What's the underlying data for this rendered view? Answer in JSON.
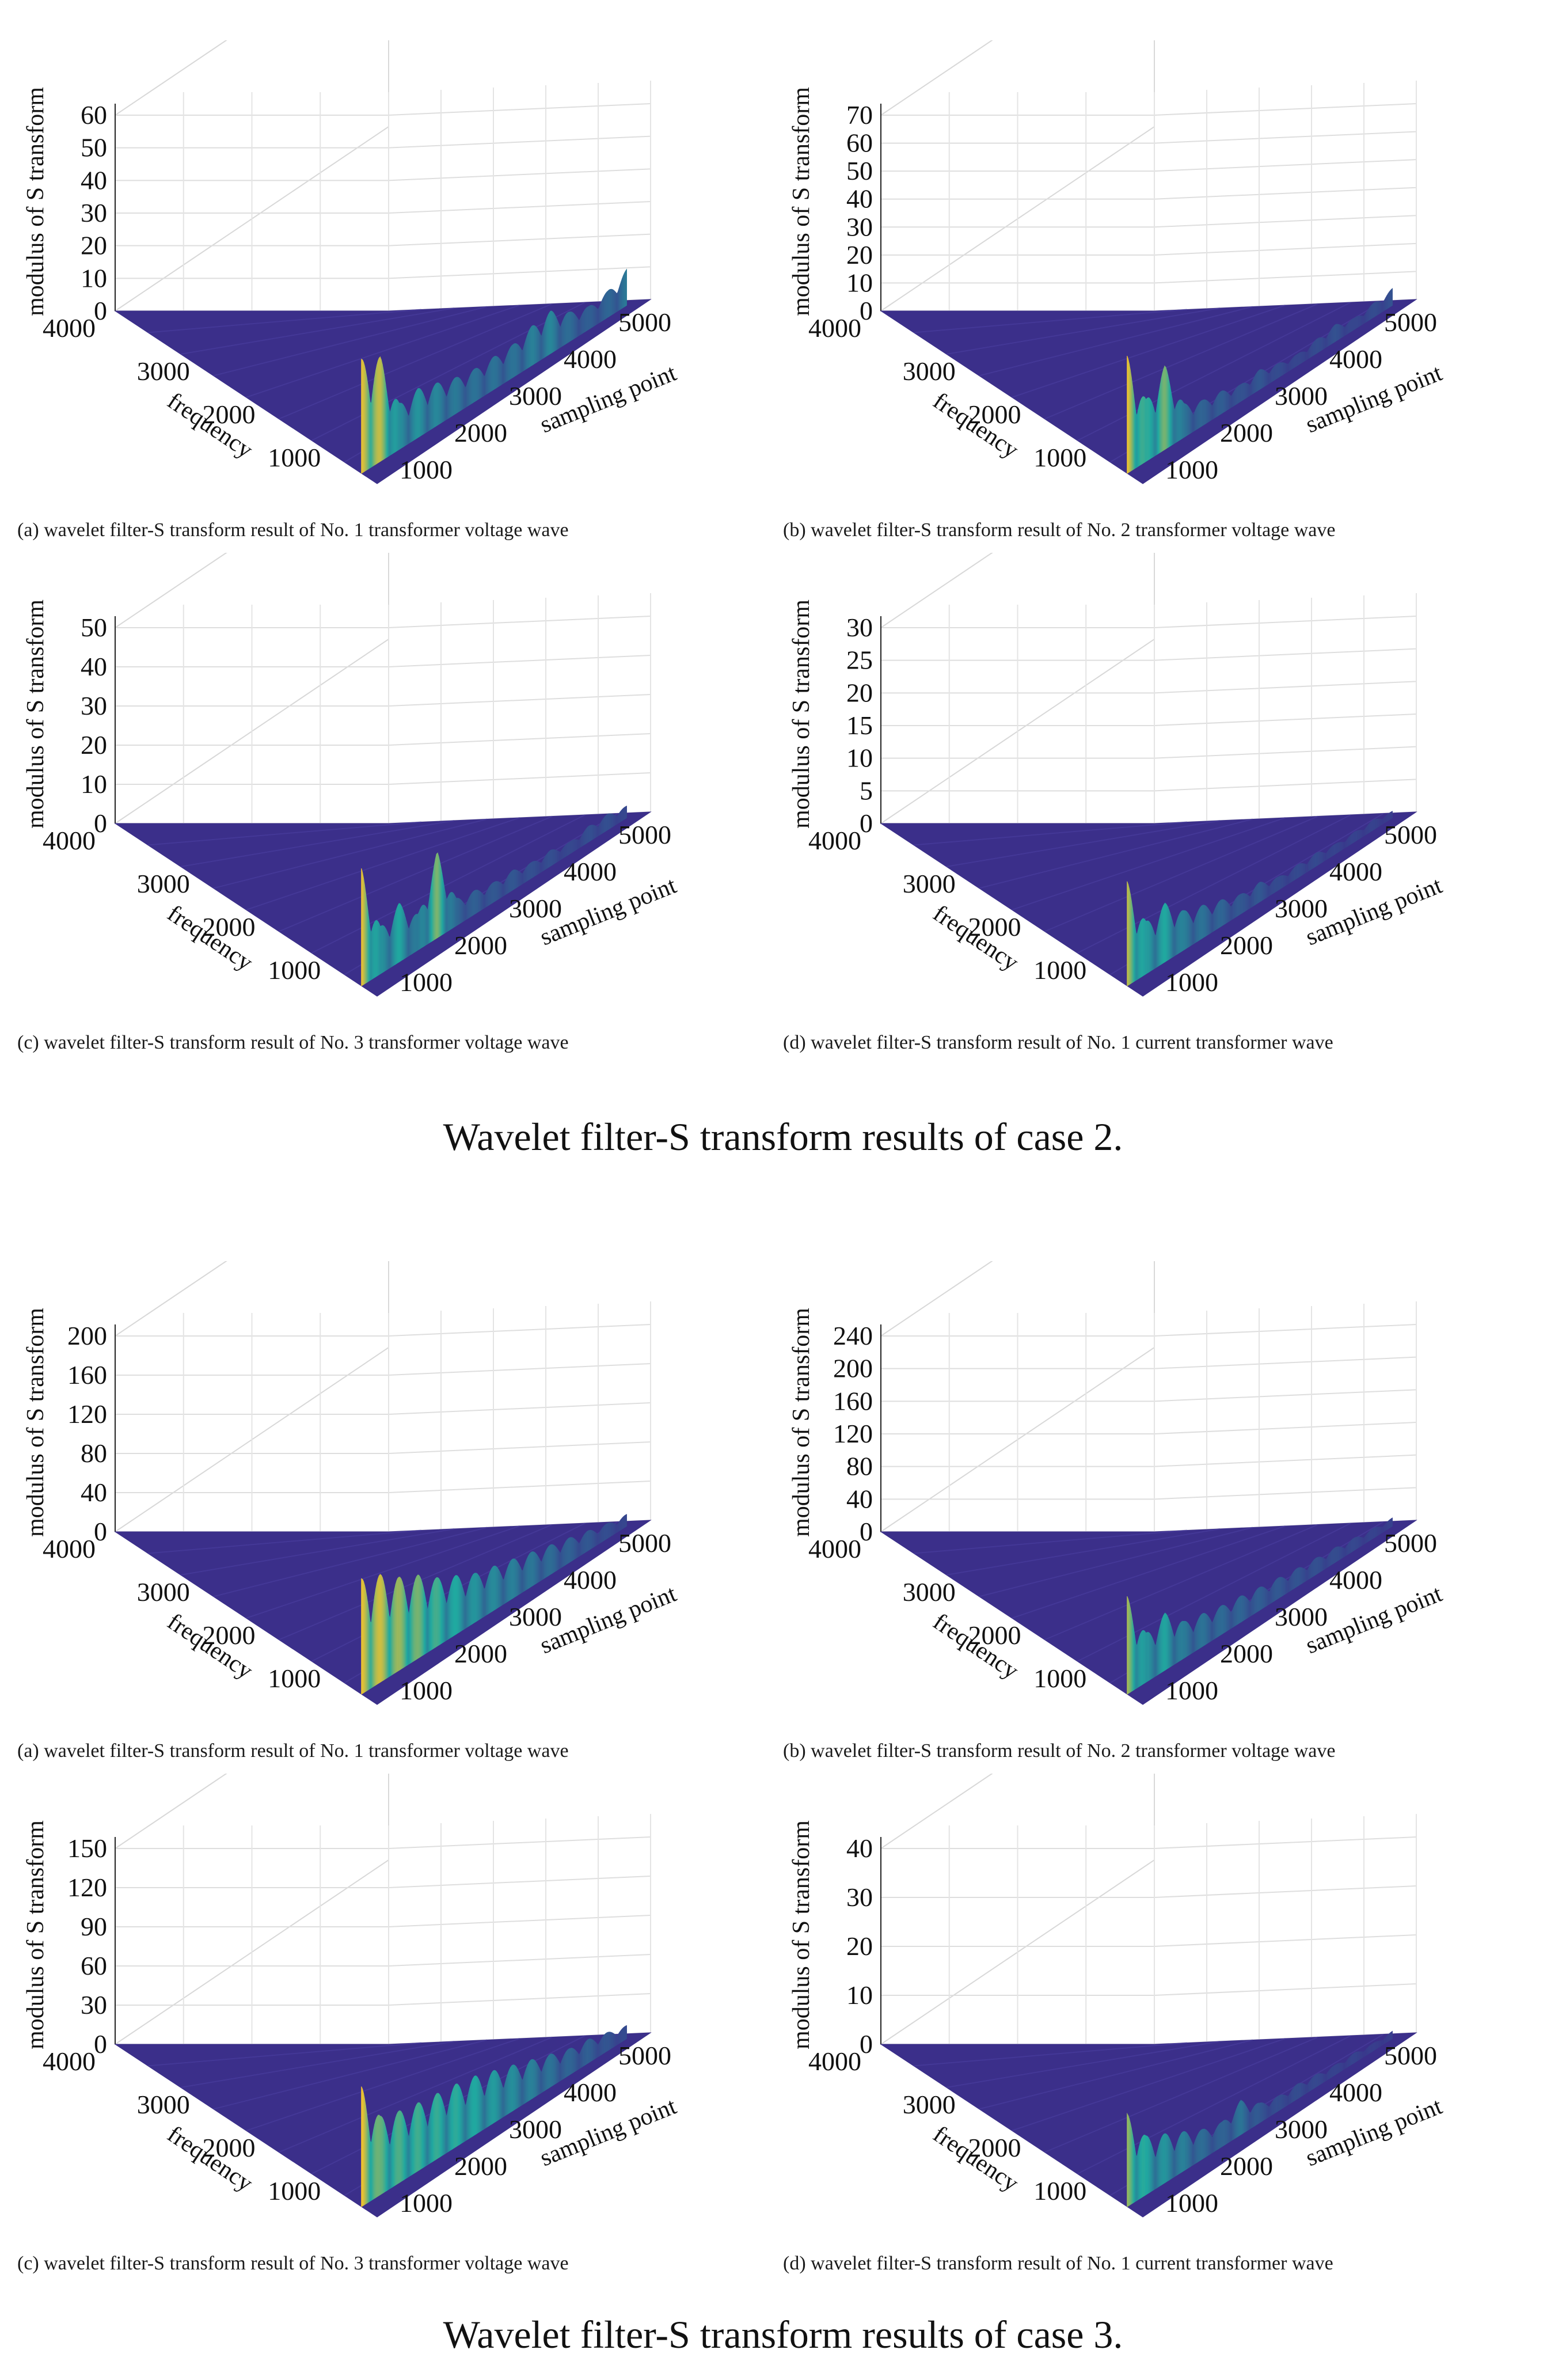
{
  "figure_captions": {
    "case2": "Wavelet filter-S transform results of case 2.",
    "case3": "Wavelet filter-S transform results of case 3."
  },
  "chart_data": [
    {
      "type": "surface3d",
      "caption": "(a) wavelet filter-S transform result of No. 1 transformer voltage wave",
      "zlabel": "modulus of S transform",
      "ylabel": "frequency",
      "xlabel": "sampling point",
      "zticks": [
        "0",
        "10",
        "20",
        "30",
        "40",
        "50",
        "60"
      ],
      "zlim": [
        0,
        60
      ],
      "yticks": [
        "4000",
        "3000",
        "2000",
        "1000"
      ],
      "xticks": [
        "1000",
        "2000",
        "3000",
        "4000",
        "5000"
      ],
      "peaks": [
        35,
        32,
        14,
        15,
        13,
        11,
        10,
        10,
        10,
        12,
        13,
        9,
        7,
        8,
        11
      ],
      "colors": {
        "low": "#3b2f8a",
        "mid": "#21a9a0",
        "high": "#f2c22e"
      }
    },
    {
      "type": "surface3d",
      "caption": "(b) wavelet filter-S transform result of No. 2 transformer voltage wave",
      "zlabel": "modulus of S transform",
      "ylabel": "frequency",
      "xlabel": "sampling point",
      "zticks": [
        "0",
        "10",
        "20",
        "30",
        "40",
        "50",
        "60",
        "70"
      ],
      "zlim": [
        0,
        70
      ],
      "yticks": [
        "4000",
        "3000",
        "2000",
        "1000"
      ],
      "xticks": [
        "1000",
        "2000",
        "3000",
        "4000",
        "5000"
      ],
      "peaks": [
        42,
        22,
        30,
        12,
        9,
        8,
        6,
        7,
        5,
        4,
        5,
        6,
        4,
        5,
        6
      ],
      "colors": {
        "low": "#3b2f8a",
        "mid": "#21a9a0",
        "high": "#f2c22e"
      }
    },
    {
      "type": "surface3d",
      "caption": "(c) wavelet filter-S transform result of No. 3 transformer voltage wave",
      "zlabel": "modulus of S transform",
      "ylabel": "frequency",
      "xlabel": "sampling point",
      "zticks": [
        "0",
        "10",
        "20",
        "30",
        "40",
        "50"
      ],
      "zlim": [
        0,
        50
      ],
      "yticks": [
        "4000",
        "3000",
        "2000",
        "1000"
      ],
      "xticks": [
        "1000",
        "2000",
        "3000",
        "4000",
        "5000"
      ],
      "peaks": [
        30,
        12,
        15,
        9,
        22,
        7,
        6,
        5,
        5,
        4,
        4,
        3,
        4,
        4,
        3
      ],
      "colors": {
        "low": "#3b2f8a",
        "mid": "#21a9a0",
        "high": "#f2c22e"
      }
    },
    {
      "type": "surface3d",
      "caption": "(d) wavelet filter-S transform result of No. 1 current transformer wave",
      "zlabel": "modulus of S transform",
      "ylabel": "frequency",
      "xlabel": "sampling point",
      "zticks": [
        "0",
        "5",
        "10",
        "15",
        "20",
        "25",
        "30"
      ],
      "zlim": [
        0,
        30
      ],
      "yticks": [
        "4000",
        "3000",
        "2000",
        "1000"
      ],
      "xticks": [
        "1000",
        "2000",
        "3000",
        "4000",
        "5000"
      ],
      "peaks": [
        16,
        8,
        9,
        6,
        5,
        4,
        3,
        3,
        2,
        2,
        2,
        1.5,
        1.5,
        1.5,
        1
      ],
      "colors": {
        "low": "#3b2f8a",
        "mid": "#21a9a0",
        "high": "#f2c22e"
      }
    },
    {
      "type": "surface3d",
      "caption": "(a) wavelet filter-S transform result of No. 1 transformer voltage wave",
      "zlabel": "modulus of S transform",
      "ylabel": "frequency",
      "xlabel": "sampling point",
      "zticks": [
        "0",
        "40",
        "80",
        "120",
        "160",
        "200"
      ],
      "zlim": [
        0,
        200
      ],
      "yticks": [
        "4000",
        "3000",
        "2000",
        "1000"
      ],
      "xticks": [
        "1000",
        "2000",
        "3000",
        "4000",
        "5000"
      ],
      "peaks": [
        118,
        110,
        95,
        85,
        70,
        60,
        50,
        45,
        40,
        35,
        30,
        25,
        20,
        15,
        12
      ],
      "colors": {
        "low": "#3b2f8a",
        "mid": "#21a9a0",
        "high": "#f2c22e"
      }
    },
    {
      "type": "surface3d",
      "caption": "(b) wavelet filter-S transform result of No. 2 transformer voltage wave",
      "zlabel": "modulus of S transform",
      "ylabel": "frequency",
      "xlabel": "sampling point",
      "zticks": [
        "0",
        "40",
        "80",
        "120",
        "160",
        "200",
        "240"
      ],
      "zlim": [
        0,
        240
      ],
      "yticks": [
        "4000",
        "3000",
        "2000",
        "1000"
      ],
      "xticks": [
        "1000",
        "2000",
        "3000",
        "4000",
        "5000"
      ],
      "peaks": [
        120,
        60,
        70,
        45,
        40,
        35,
        32,
        28,
        25,
        22,
        20,
        18,
        15,
        12,
        10
      ],
      "colors": {
        "low": "#3b2f8a",
        "mid": "#21a9a0",
        "high": "#f2c22e"
      }
    },
    {
      "type": "surface3d",
      "caption": "(c) wavelet filter-S transform result of No. 3 transformer voltage wave",
      "zlabel": "modulus of S transform",
      "ylabel": "frequency",
      "xlabel": "sampling point",
      "zticks": [
        "0",
        "30",
        "60",
        "90",
        "120",
        "150"
      ],
      "zlim": [
        0,
        150
      ],
      "yticks": [
        "4000",
        "3000",
        "2000",
        "1000"
      ],
      "xticks": [
        "1000",
        "2000",
        "3000",
        "4000",
        "5000"
      ],
      "peaks": [
        92,
        60,
        55,
        52,
        50,
        48,
        45,
        40,
        35,
        30,
        25,
        20,
        18,
        14,
        10
      ],
      "colors": {
        "low": "#3b2f8a",
        "mid": "#21a9a0",
        "high": "#f2c22e"
      }
    },
    {
      "type": "surface3d",
      "caption": "(d) wavelet filter-S transform result of No. 1 current transformer wave",
      "zlabel": "modulus of S transform",
      "ylabel": "frequency",
      "xlabel": "sampling point",
      "zticks": [
        "0",
        "10",
        "20",
        "30",
        "40"
      ],
      "zlim": [
        0,
        40
      ],
      "yticks": [
        "4000",
        "3000",
        "2000",
        "1000"
      ],
      "xticks": [
        "1000",
        "2000",
        "3000",
        "4000",
        "5000"
      ],
      "peaks": [
        19,
        12,
        10,
        8,
        6,
        5,
        7,
        4,
        3,
        3,
        2.5,
        2,
        2,
        1.5,
        1.5
      ],
      "colors": {
        "low": "#3b2f8a",
        "mid": "#21a9a0",
        "high": "#f2c22e"
      }
    }
  ]
}
